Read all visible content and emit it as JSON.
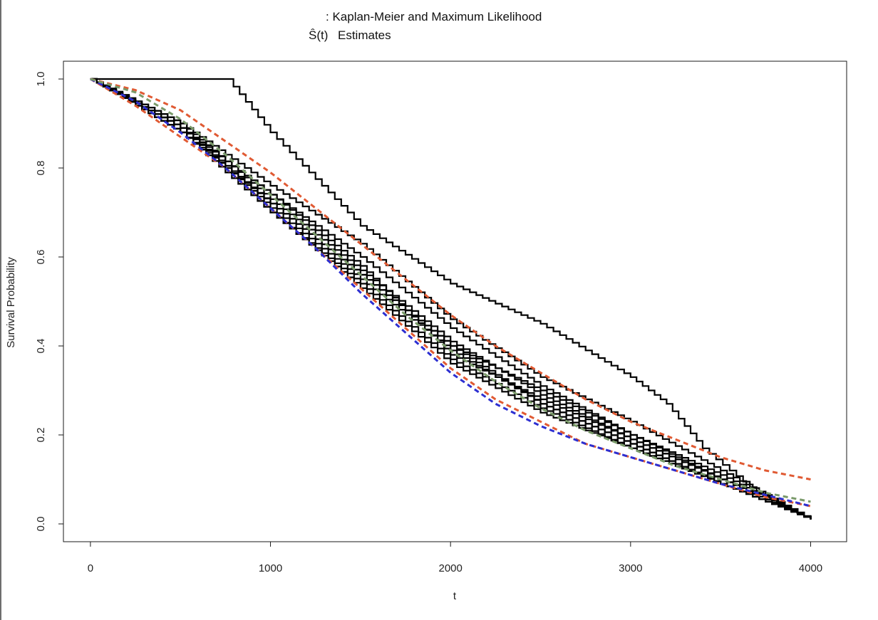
{
  "chart_data": {
    "type": "line",
    "title_prefix": ": Kaplan-Meier and Maximum Likelihood",
    "title_symbol": "Ŝ(t)",
    "title_suffix": "Estimates",
    "xlabel": "t",
    "ylabel": "Survival Probability",
    "xlim": [
      -150,
      4200
    ],
    "ylim": [
      -0.04,
      1.04
    ],
    "xticks": [
      0,
      1000,
      2000,
      3000,
      4000
    ],
    "yticks": [
      0.0,
      0.2,
      0.4,
      0.6,
      0.8,
      1.0
    ],
    "grid": false,
    "legend": "none",
    "series": [
      {
        "style": "step",
        "color": "#000000",
        "x": [
          0,
          760,
          1000,
          1500,
          2000,
          2500,
          3000,
          3200,
          3400,
          3700,
          4000
        ],
        "y": [
          1.0,
          1.0,
          0.88,
          0.67,
          0.54,
          0.45,
          0.33,
          0.27,
          0.17,
          0.07,
          0.01
        ]
      },
      {
        "style": "step",
        "color": "#000000",
        "x": [
          0,
          500,
          1000,
          1500,
          2000,
          2500,
          3000,
          3500,
          4000
        ],
        "y": [
          1.0,
          0.9,
          0.73,
          0.57,
          0.41,
          0.29,
          0.19,
          0.1,
          0.01
        ]
      },
      {
        "style": "step",
        "color": "#000000",
        "x": [
          0,
          500,
          1000,
          1500,
          2000,
          2500,
          3000,
          3500,
          4000
        ],
        "y": [
          1.0,
          0.89,
          0.71,
          0.55,
          0.39,
          0.27,
          0.18,
          0.09,
          0.01
        ]
      },
      {
        "style": "step",
        "color": "#000000",
        "x": [
          0,
          500,
          1000,
          1500,
          2000,
          2500,
          3000,
          3500,
          4000
        ],
        "y": [
          1.0,
          0.88,
          0.7,
          0.54,
          0.37,
          0.26,
          0.17,
          0.09,
          0.01
        ]
      },
      {
        "style": "step",
        "color": "#000000",
        "x": [
          0,
          500,
          1000,
          1500,
          2000,
          2500,
          3000,
          3500,
          4000
        ],
        "y": [
          1.0,
          0.88,
          0.72,
          0.56,
          0.4,
          0.3,
          0.2,
          0.1,
          0.01
        ]
      },
      {
        "style": "step",
        "color": "#000000",
        "x": [
          0,
          500,
          1000,
          1500,
          2000,
          2500,
          3000,
          3500,
          4000
        ],
        "y": [
          1.0,
          0.89,
          0.74,
          0.6,
          0.44,
          0.31,
          0.2,
          0.11,
          0.01
        ]
      },
      {
        "style": "step",
        "color": "#000000",
        "x": [
          0,
          500,
          1000,
          1500,
          2000,
          2500,
          3000,
          3500,
          4000
        ],
        "y": [
          1.0,
          0.9,
          0.76,
          0.63,
          0.46,
          0.33,
          0.23,
          0.12,
          0.01
        ]
      },
      {
        "style": "step",
        "color": "#000000",
        "x": [
          0,
          500,
          1000,
          1500,
          2000,
          2500,
          3000,
          3500,
          4000
        ],
        "y": [
          1.0,
          0.89,
          0.74,
          0.58,
          0.38,
          0.28,
          0.19,
          0.1,
          0.01
        ]
      },
      {
        "style": "step",
        "color": "#000000",
        "x": [
          0,
          500,
          1000,
          1500,
          2000,
          2500,
          3000,
          3500,
          4000
        ],
        "y": [
          1.0,
          0.88,
          0.7,
          0.53,
          0.36,
          0.25,
          0.17,
          0.09,
          0.01
        ]
      },
      {
        "style": "step",
        "color": "#000000",
        "x": [
          0,
          500,
          1000,
          1500,
          2000,
          2500,
          3000,
          3500,
          4000
        ],
        "y": [
          1.0,
          0.89,
          0.72,
          0.56,
          0.4,
          0.27,
          0.18,
          0.09,
          0.01
        ]
      },
      {
        "style": "dashed",
        "color": "#e05a33",
        "x": [
          0,
          250,
          500,
          750,
          1000,
          1250,
          1500,
          1750,
          2000,
          2250,
          2500,
          2750,
          3000,
          3250,
          3500,
          3750,
          4000
        ],
        "y": [
          1.0,
          0.975,
          0.93,
          0.86,
          0.79,
          0.71,
          0.63,
          0.55,
          0.47,
          0.4,
          0.34,
          0.28,
          0.23,
          0.19,
          0.15,
          0.12,
          0.1
        ]
      },
      {
        "style": "dashed",
        "color": "#e05a33",
        "x": [
          0,
          250,
          500,
          750,
          1000,
          1250,
          1500,
          1750,
          2000,
          2250,
          2500,
          2750,
          3000,
          3250,
          3500,
          3750,
          4000
        ],
        "y": [
          1.0,
          0.94,
          0.87,
          0.8,
          0.71,
          0.62,
          0.53,
          0.44,
          0.35,
          0.28,
          0.23,
          0.18,
          0.15,
          0.12,
          0.09,
          0.06,
          0.04
        ]
      },
      {
        "style": "dashed",
        "color": "#2d2fd1",
        "x": [
          0,
          250,
          500,
          750,
          1000,
          1250,
          1500,
          1750,
          2000,
          2250,
          2500,
          2750,
          3000,
          3250,
          3500,
          3750,
          4000
        ],
        "y": [
          1.0,
          0.95,
          0.88,
          0.8,
          0.71,
          0.62,
          0.52,
          0.43,
          0.34,
          0.27,
          0.22,
          0.18,
          0.15,
          0.12,
          0.09,
          0.065,
          0.04
        ]
      },
      {
        "style": "dashed",
        "color": "#7a9a6a",
        "x": [
          0,
          250,
          500,
          750,
          1000,
          1250,
          1500,
          1750,
          2000,
          2250,
          2500,
          2750,
          3000,
          3250,
          3500,
          3750,
          4000
        ],
        "y": [
          1.0,
          0.97,
          0.91,
          0.83,
          0.74,
          0.65,
          0.56,
          0.47,
          0.39,
          0.32,
          0.26,
          0.21,
          0.17,
          0.13,
          0.1,
          0.07,
          0.05
        ]
      }
    ]
  }
}
